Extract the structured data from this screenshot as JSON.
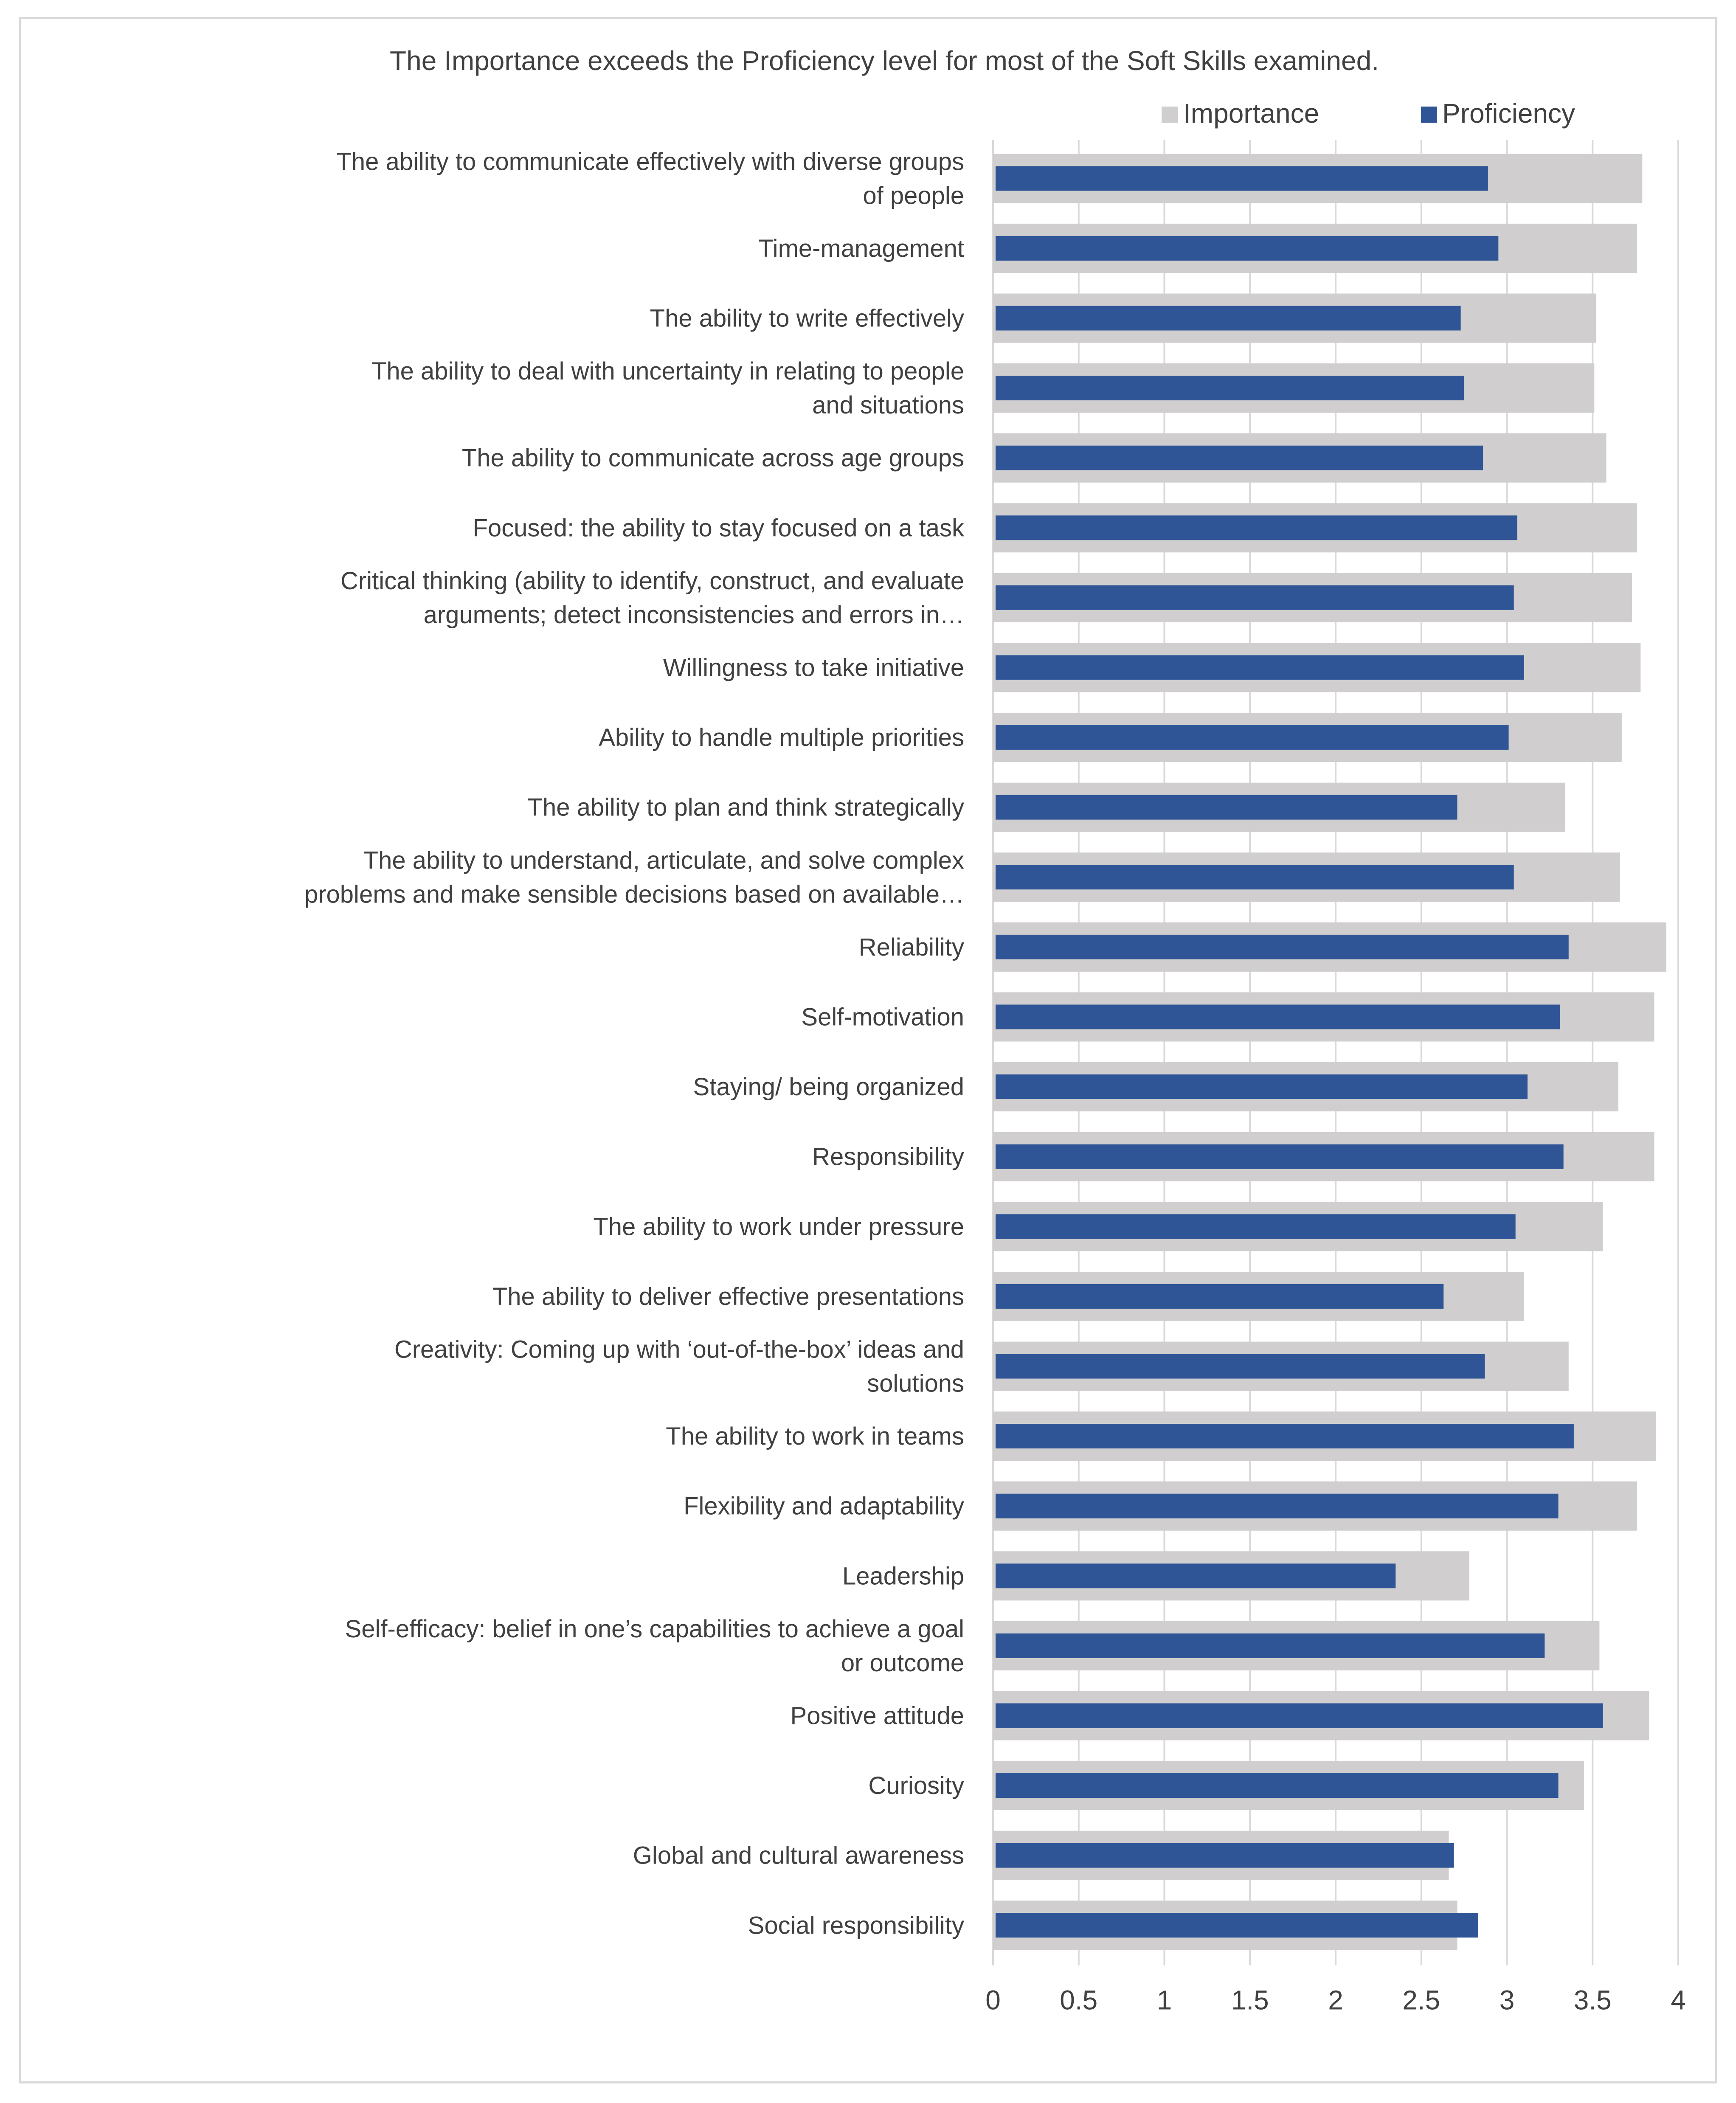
{
  "chart_data": {
    "type": "bar",
    "orientation": "horizontal",
    "title": "The Importance exceeds the Proficiency level for most of the Soft Skills examined.",
    "xlabel": "",
    "ylabel": "",
    "xlim": [
      0,
      4
    ],
    "x_ticks": [
      "0",
      "0.5",
      "1",
      "1.5",
      "2",
      "2.5",
      "3",
      "3.5",
      "4"
    ],
    "grid": "vertical",
    "legend_position": "top-right",
    "colors": {
      "importance": "#d0cece",
      "proficiency": "#2f5597",
      "text": "#404040",
      "grid": "#d9d9d9"
    },
    "categories": [
      [
        "The ability to communicate effectively with diverse groups",
        "of people"
      ],
      [
        "Time-management"
      ],
      [
        "The ability to write effectively"
      ],
      [
        "The ability to deal with uncertainty in relating to people",
        "and situations"
      ],
      [
        "The ability to communicate across age groups"
      ],
      [
        "Focused:  the ability to stay focused on a task"
      ],
      [
        "Critical thinking (ability to identify, construct, and evaluate",
        "arguments; detect inconsistencies and errors in…"
      ],
      [
        "Willingness to take initiative"
      ],
      [
        "Ability to handle multiple priorities"
      ],
      [
        "The ability to plan and think strategically"
      ],
      [
        "The ability to understand, articulate, and solve complex",
        "problems and make sensible decisions based on available…"
      ],
      [
        "Reliability"
      ],
      [
        "Self-motivation"
      ],
      [
        "Staying/ being organized"
      ],
      [
        "Responsibility"
      ],
      [
        "The ability to work under pressure"
      ],
      [
        "The ability to deliver effective presentations"
      ],
      [
        "Creativity: Coming up with ‘out-of-the-box’ ideas and",
        "solutions"
      ],
      [
        "The ability to work in teams"
      ],
      [
        "Flexibility and adaptability"
      ],
      [
        "Leadership"
      ],
      [
        "Self-efficacy: belief in one’s capabilities to achieve a goal",
        "or outcome"
      ],
      [
        "Positive attitude"
      ],
      [
        "Curiosity"
      ],
      [
        "Global and cultural awareness"
      ],
      [
        "Social responsibility"
      ]
    ],
    "series": [
      {
        "name": "Importance",
        "values": [
          3.79,
          3.76,
          3.52,
          3.51,
          3.58,
          3.76,
          3.73,
          3.78,
          3.67,
          3.34,
          3.66,
          3.93,
          3.86,
          3.65,
          3.86,
          3.56,
          3.1,
          3.36,
          3.87,
          3.76,
          2.78,
          3.54,
          3.83,
          3.45,
          2.66,
          2.71
        ]
      },
      {
        "name": "Proficiency",
        "values": [
          2.89,
          2.95,
          2.73,
          2.75,
          2.86,
          3.06,
          3.04,
          3.1,
          3.01,
          2.71,
          3.04,
          3.36,
          3.31,
          3.12,
          3.33,
          3.05,
          2.63,
          2.87,
          3.39,
          3.3,
          2.35,
          3.22,
          3.56,
          3.3,
          2.69,
          2.83
        ]
      }
    ]
  }
}
